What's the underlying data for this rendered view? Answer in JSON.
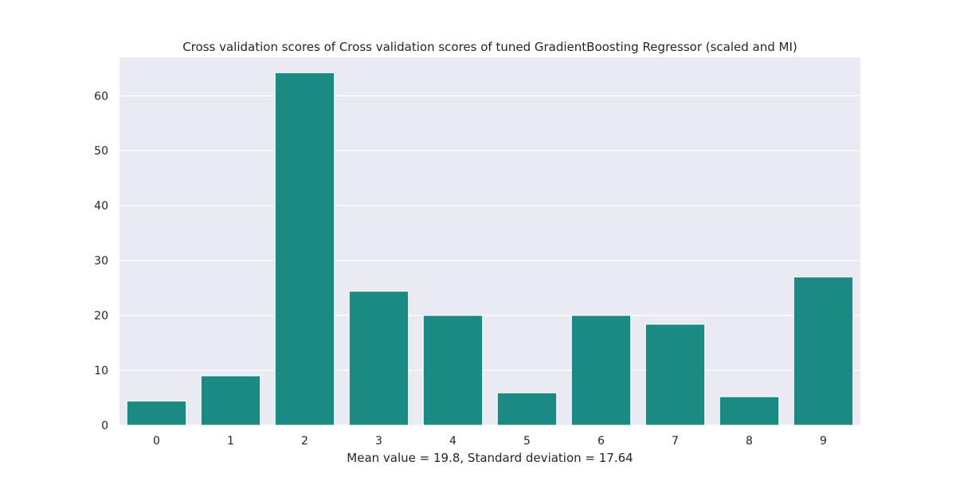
{
  "chart_data": {
    "type": "bar",
    "title": "Cross validation scores of Cross validation scores of tuned GradientBoosting Regressor (scaled and MI)",
    "xlabel": "Mean value = 19.8, Standard deviation = 17.64",
    "ylabel": "",
    "categories": [
      "0",
      "1",
      "2",
      "3",
      "4",
      "5",
      "6",
      "7",
      "8",
      "9"
    ],
    "values": [
      4.4,
      9.0,
      64.2,
      24.4,
      20.0,
      5.9,
      20.0,
      18.4,
      5.2,
      27.0
    ],
    "ylim": [
      0,
      67
    ],
    "yticks": [
      "0",
      "10",
      "20",
      "30",
      "40",
      "50",
      "60"
    ],
    "grid": true,
    "legend": "none",
    "colors": {
      "bar": "#1a8a82",
      "plot_background": "#eaeaf2",
      "grid": "#ffffff"
    }
  }
}
